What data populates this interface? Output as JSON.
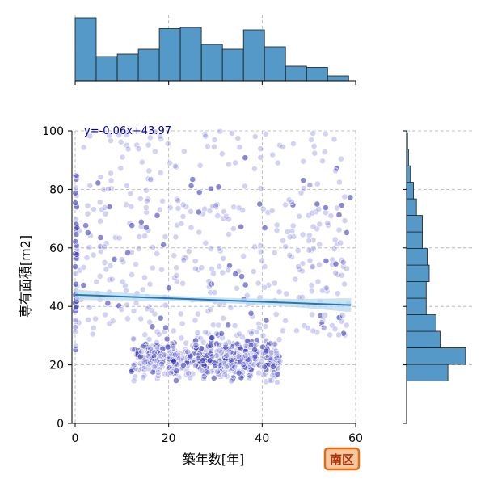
{
  "chart_data": {
    "type": "scatter",
    "xlabel": "築年数[年]",
    "ylabel": "専有面積[m2]",
    "xlim": [
      0,
      60
    ],
    "ylim": [
      0,
      100
    ],
    "x_ticks": [
      0,
      20,
      40,
      60
    ],
    "y_ticks": [
      0,
      20,
      40,
      60,
      80,
      100
    ],
    "grid": true,
    "annotation": "y=-0.06x+43.97",
    "badge": "南区",
    "regression": {
      "slope": -0.06,
      "intercept": 43.97,
      "x_range": [
        0,
        59
      ]
    },
    "marginal_x": {
      "bin_width": 4.5,
      "x_start": 0,
      "counts": [
        52,
        20,
        22,
        26,
        43,
        44,
        30,
        26,
        42,
        28,
        12,
        11,
        4
      ]
    },
    "marginal_y": {
      "bin_width": 5.66,
      "y_start": 14.5,
      "counts": [
        42,
        60,
        34,
        30,
        20,
        20,
        23,
        21,
        16,
        16,
        10,
        7,
        4,
        2,
        1
      ]
    },
    "colors": {
      "points": "#6b6bd4",
      "points_dense": "#2a2ab0",
      "regression_line": "#1f77b4",
      "confidence_band": "#b9d8ec",
      "histogram_fill": "#5499c7",
      "annotation_text": "#0000aa",
      "badge_fill": "#f5c9a0",
      "badge_stroke": "#e86a10",
      "badge_text": "#b3300a"
    }
  }
}
